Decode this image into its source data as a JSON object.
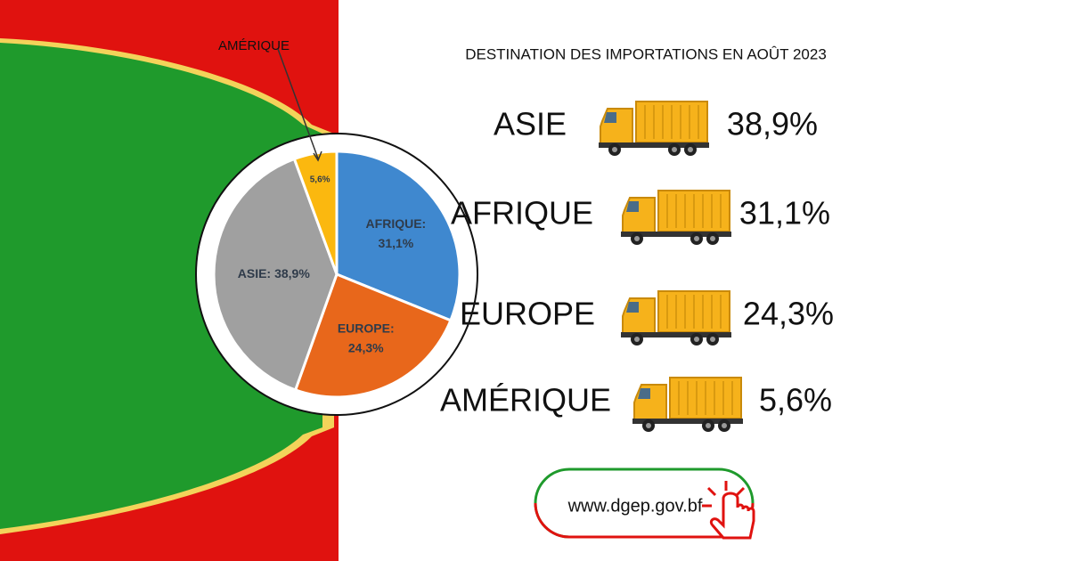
{
  "chart_data": {
    "type": "pie",
    "title": "DESTINATION DES IMPORTATIONS EN AOÛT 2023",
    "categories": [
      "AFRIQUE:",
      "EUROPE:",
      "ASIE:",
      "AMÉRIQUE"
    ],
    "values": [
      31.1,
      24.3,
      38.9,
      5.6
    ],
    "value_labels": [
      "31,1%",
      "24,3%",
      "38,9%",
      "5,6%"
    ],
    "colors": [
      "#3f88cf",
      "#e8671b",
      "#a0a0a0",
      "#fbb80f"
    ],
    "list": [
      {
        "name": "ASIE",
        "value_label": "38,9%"
      },
      {
        "name": "AFRIQUE",
        "value_label": "31,1%"
      },
      {
        "name": "EUROPE",
        "value_label": "24,3%"
      },
      {
        "name": "AMÉRIQUE",
        "value_label": "5,6%"
      }
    ]
  },
  "website": "www.dgep.gov.bf"
}
